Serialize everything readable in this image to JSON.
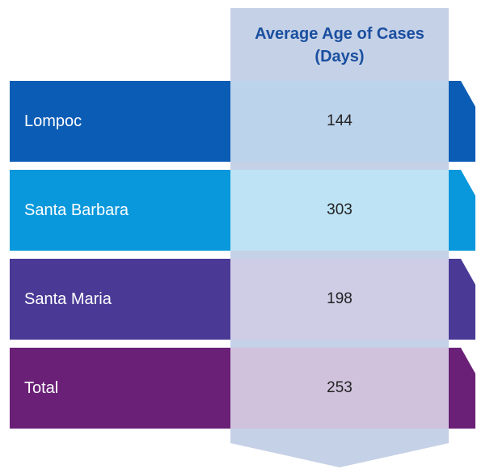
{
  "header": {
    "title": "Average Age of Cases (Days)"
  },
  "table": {
    "rows": [
      [
        "Lompoc",
        144
      ],
      [
        "Santa Barbara",
        303
      ],
      [
        "Santa Maria",
        198
      ],
      [
        "Total",
        253
      ]
    ]
  }
}
